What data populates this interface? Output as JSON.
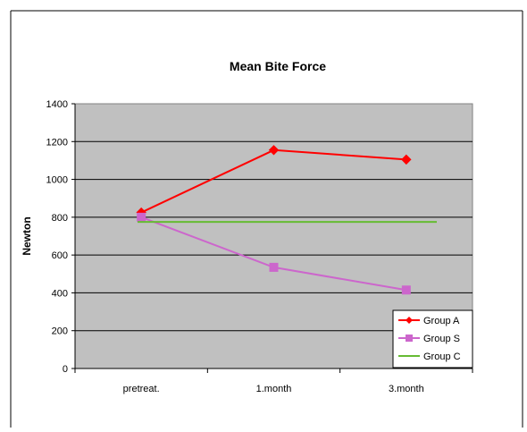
{
  "chart_data": {
    "type": "line",
    "title": "Mean Bite Force",
    "xlabel": "",
    "ylabel": "Newton",
    "categories": [
      "pretreat.",
      "1.month",
      "3.month"
    ],
    "ylim": [
      0,
      1400
    ],
    "yticks": [
      0,
      200,
      400,
      600,
      800,
      1000,
      1200,
      1400
    ],
    "grid": true,
    "legend_position": "bottom-right",
    "plot_background": "#c0c0c0",
    "series": [
      {
        "name": "Group A",
        "values": [
          825,
          1155,
          1105
        ],
        "color": "#ff0000",
        "marker": "diamond"
      },
      {
        "name": "Group S",
        "values": [
          800,
          535,
          415
        ],
        "color": "#cc66cc",
        "marker": "square"
      },
      {
        "name": "Group C",
        "values": [
          775,
          775,
          775
        ],
        "color": "#66bb33",
        "marker": "none"
      }
    ]
  }
}
